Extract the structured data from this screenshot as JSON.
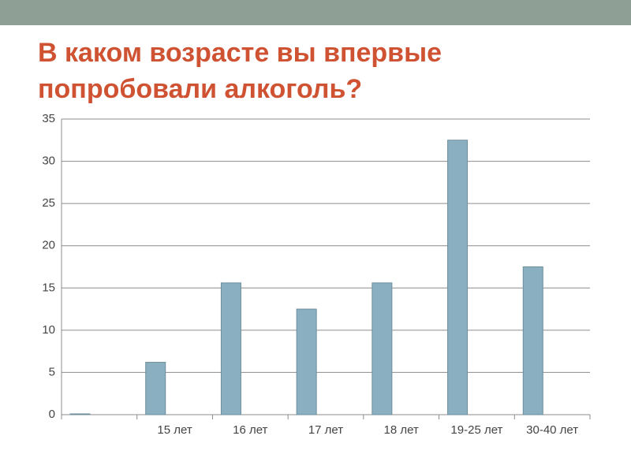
{
  "chart_data": {
    "type": "bar",
    "title": "В каком возрасте вы впервые попробовали алкоголь?",
    "categories": [
      null,
      "15 лет",
      "16 лет",
      "17 лет",
      "18 лет",
      "19-25 лет",
      "30-40 лет"
    ],
    "values": [
      0,
      6.2,
      15.6,
      12.5,
      15.6,
      32.5,
      17.5
    ],
    "color": "#8aafc0",
    "ylim": [
      0,
      35
    ],
    "yticks": [
      0,
      5,
      10,
      15,
      20,
      25,
      30,
      35
    ],
    "grid": true
  }
}
